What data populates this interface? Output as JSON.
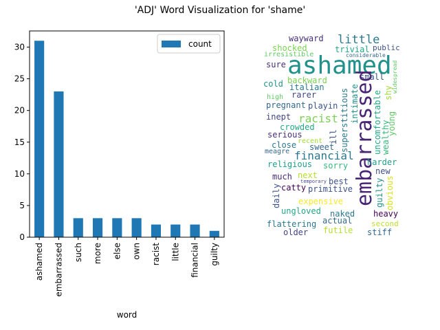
{
  "figure": {
    "title": "'ADJ' Word Visualization for 'shame'"
  },
  "chart_data": {
    "type": "bar",
    "categories": [
      "ashamed",
      "embarrassed",
      "such",
      "more",
      "else",
      "own",
      "racist",
      "little",
      "financial",
      "guilty"
    ],
    "series": [
      {
        "name": "count",
        "values": [
          31,
          23,
          3,
          3,
          3,
          3,
          2,
          2,
          2,
          1
        ],
        "color": "#1f77b4"
      }
    ],
    "xlabel": "word",
    "ylabel": "",
    "ylim": [
      0,
      32.55
    ],
    "yticks": [
      0,
      5,
      10,
      15,
      20,
      25,
      30
    ],
    "legend": "top-right",
    "grid": false
  },
  "wordcloud": {
    "words": [
      {
        "text": "wayward",
        "color": "#472d7b"
      },
      {
        "text": "little",
        "color": "#2a788e"
      },
      {
        "text": "shocked",
        "color": "#7ad151"
      },
      {
        "text": "trivial",
        "color": "#22a884"
      },
      {
        "text": "public",
        "color": "#3b528b"
      },
      {
        "text": "irresistible",
        "color": "#5ec962"
      },
      {
        "text": "considerable",
        "color": "#31688e"
      },
      {
        "text": "ashamed",
        "color": "#21918c"
      },
      {
        "text": "widespread",
        "color": "#5ec962"
      },
      {
        "text": "sure",
        "color": "#472d7b"
      },
      {
        "text": "backward",
        "color": "#7ad151"
      },
      {
        "text": "small",
        "color": "#3b528b"
      },
      {
        "text": "cold",
        "color": "#21918c"
      },
      {
        "text": "italian",
        "color": "#2a788e"
      },
      {
        "text": "shy",
        "color": "#a0da39"
      },
      {
        "text": "high",
        "color": "#5ec962"
      },
      {
        "text": "rarer",
        "color": "#414487"
      },
      {
        "text": "pregnant",
        "color": "#31688e"
      },
      {
        "text": "playin",
        "color": "#3b528b"
      },
      {
        "text": "superstitious",
        "color": "#2a788e"
      },
      {
        "text": "intimate",
        "color": "#21918c"
      },
      {
        "text": "embarrassed",
        "color": "#482475"
      },
      {
        "text": "uncomfortable",
        "color": "#22a884"
      },
      {
        "text": "wealthy",
        "color": "#35b779"
      },
      {
        "text": "inept",
        "color": "#414487"
      },
      {
        "text": "racist",
        "color": "#7ad151"
      },
      {
        "text": "young",
        "color": "#5ec962"
      },
      {
        "text": "crowded",
        "color": "#22a884"
      },
      {
        "text": "serious",
        "color": "#472d7b"
      },
      {
        "text": "recent",
        "color": "#a0da39"
      },
      {
        "text": "close",
        "color": "#2a788e"
      },
      {
        "text": "sweet",
        "color": "#31688e"
      },
      {
        "text": "ill",
        "color": "#3b528b"
      },
      {
        "text": "meagre",
        "color": "#31688e"
      },
      {
        "text": "financial",
        "color": "#2a788e"
      },
      {
        "text": "religious",
        "color": "#1f9e89"
      },
      {
        "text": "sorry",
        "color": "#35b779"
      },
      {
        "text": "harder",
        "color": "#1f9e89"
      },
      {
        "text": "guilty",
        "color": "#21918c"
      },
      {
        "text": "new",
        "color": "#3b528b"
      },
      {
        "text": "much",
        "color": "#472d7b"
      },
      {
        "text": "next",
        "color": "#b5de2b"
      },
      {
        "text": "temporary",
        "color": "#414487"
      },
      {
        "text": "best",
        "color": "#3b528b"
      },
      {
        "text": "obvious",
        "color": "#d8e219"
      },
      {
        "text": "catty",
        "color": "#440154"
      },
      {
        "text": "primitive",
        "color": "#3b528b"
      },
      {
        "text": "daily",
        "color": "#3b528b"
      },
      {
        "text": "expensive",
        "color": "#fde725"
      },
      {
        "text": "ungloved",
        "color": "#22a884"
      },
      {
        "text": "naked",
        "color": "#2a788e"
      },
      {
        "text": "heavy",
        "color": "#440154"
      },
      {
        "text": "actual",
        "color": "#31688e"
      },
      {
        "text": "second",
        "color": "#bddf26"
      },
      {
        "text": "flattering",
        "color": "#2a788e"
      },
      {
        "text": "futile",
        "color": "#b5de2b"
      },
      {
        "text": "older",
        "color": "#414487"
      },
      {
        "text": "stiff",
        "color": "#31688e"
      }
    ]
  }
}
